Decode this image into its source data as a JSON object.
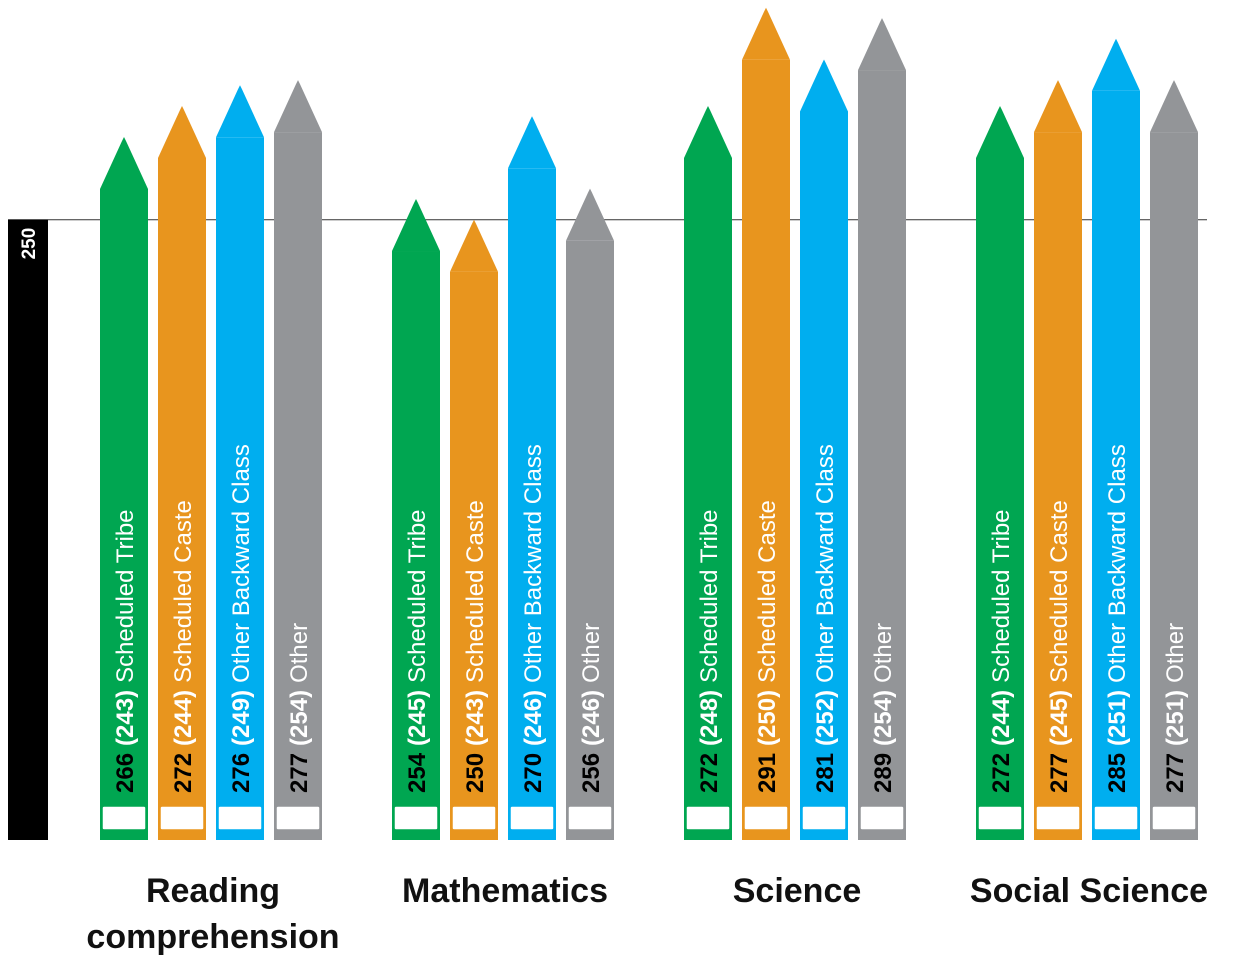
{
  "chart_data": {
    "type": "pencil-bar",
    "categories": [
      "Reading comprehension",
      "Mathematics",
      "Science",
      "Social Science"
    ],
    "series": [
      {
        "name": "Scheduled Tribe",
        "color": "#00a651",
        "values": [
          266,
          254,
          272,
          272
        ],
        "previous_labels": [
          "(243)",
          "(245)",
          "(248)",
          "(244)"
        ]
      },
      {
        "name": "Scheduled Caste",
        "color": "#e8951e",
        "values": [
          272,
          250,
          291,
          277
        ],
        "previous_labels": [
          "(244)",
          "(243)",
          "(250)",
          "(245)"
        ]
      },
      {
        "name": "Other Backward Class",
        "color": "#00aeef",
        "values": [
          276,
          270,
          281,
          285
        ],
        "previous_labels": [
          "(249)",
          "(246)",
          "(252)",
          "(251)"
        ]
      },
      {
        "name": "Other",
        "color": "#939598",
        "values": [
          277,
          256,
          289,
          277
        ],
        "previous_labels": [
          "(254)",
          "(246)",
          "(254)",
          "(251)"
        ]
      }
    ],
    "ylim": [
      130,
      292.5
    ],
    "yticks": [
      250
    ]
  }
}
